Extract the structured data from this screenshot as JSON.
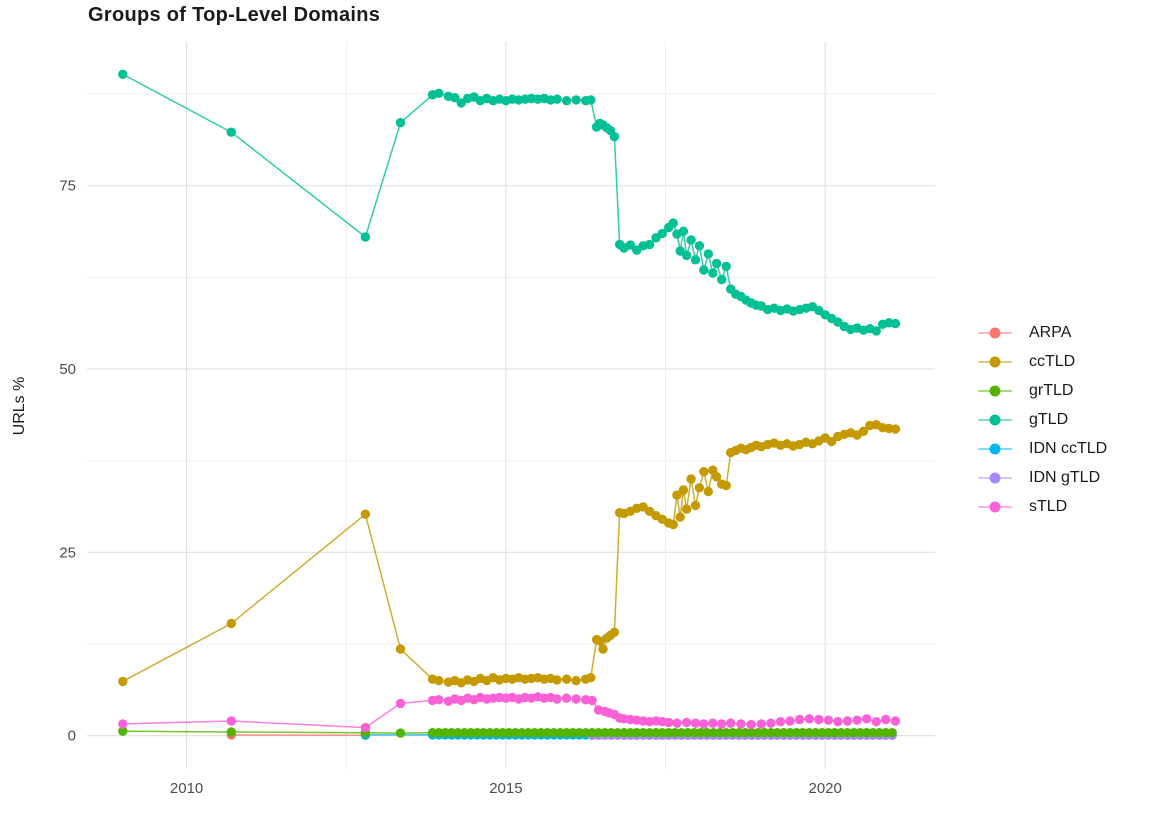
{
  "figure": {
    "background": "#ffffff"
  },
  "chart_data": {
    "type": "line",
    "title": "Groups of Top-Level Domains",
    "xlabel": "",
    "ylabel": "URLs %",
    "xlim": [
      2008.44,
      2021.72
    ],
    "ylim": [
      -4.55,
      94.6
    ],
    "x_ticks": [
      {
        "value": 2010,
        "label": "2010"
      },
      {
        "value": 2015,
        "label": "2015"
      },
      {
        "value": 2020,
        "label": "2020"
      }
    ],
    "y_ticks": [
      {
        "value": 0,
        "label": "0"
      },
      {
        "value": 25,
        "label": "25"
      },
      {
        "value": 50,
        "label": "50"
      },
      {
        "value": 75,
        "label": "75"
      }
    ],
    "x_minor": [
      2012.5,
      2017.5
    ],
    "y_minor": [
      12.5,
      37.5,
      62.5,
      87.5
    ],
    "grid": "major+minor",
    "legend_position": "right-middle",
    "colors": {
      "grid_major": "#e2e2e2",
      "grid_minor": "#efefef",
      "tick_label": "#4d4d4d",
      "title_text": "#1a1a1a"
    },
    "point_radius": 4.7,
    "line_width": 1.5,
    "draw_order": [
      "ARPA",
      "IDN ccTLD",
      "IDN gTLD",
      "grTLD",
      "ccTLD",
      "gTLD",
      "sTLD"
    ],
    "series": [
      {
        "id": "arpa",
        "name": "ARPA",
        "color": "#F8766D",
        "points": [
          [
            2010.7,
            0.1
          ],
          [
            2012.8,
            0.05
          ]
        ]
      },
      {
        "id": "cctld",
        "name": "ccTLD",
        "color": "#C49A00",
        "points": [
          [
            2009,
            7.4
          ],
          [
            2010.7,
            15.3
          ],
          [
            2012.8,
            30.2
          ],
          [
            2013.35,
            11.8
          ],
          [
            2013.85,
            7.7
          ],
          [
            2013.95,
            7.5
          ],
          [
            2014.1,
            7.3
          ],
          [
            2014.2,
            7.5
          ],
          [
            2014.3,
            7.2
          ],
          [
            2014.4,
            7.6
          ],
          [
            2014.5,
            7.4
          ],
          [
            2014.6,
            7.8
          ],
          [
            2014.7,
            7.5
          ],
          [
            2014.8,
            7.9
          ],
          [
            2014.9,
            7.6
          ],
          [
            2015,
            7.8
          ],
          [
            2015.1,
            7.7
          ],
          [
            2015.2,
            7.9
          ],
          [
            2015.3,
            7.7
          ],
          [
            2015.4,
            7.8
          ],
          [
            2015.5,
            7.9
          ],
          [
            2015.6,
            7.7
          ],
          [
            2015.7,
            7.8
          ],
          [
            2015.8,
            7.6
          ],
          [
            2015.95,
            7.7
          ],
          [
            2016.1,
            7.5
          ],
          [
            2016.25,
            7.7
          ],
          [
            2016.33,
            7.9
          ],
          [
            2016.42,
            13.1
          ],
          [
            2016.47,
            12.9
          ],
          [
            2016.52,
            11.8
          ],
          [
            2016.58,
            13.3
          ],
          [
            2016.64,
            13.7
          ],
          [
            2016.7,
            14.1
          ],
          [
            2016.78,
            30.4
          ],
          [
            2016.85,
            30.3
          ],
          [
            2016.95,
            30.6
          ],
          [
            2017.05,
            31
          ],
          [
            2017.15,
            31.2
          ],
          [
            2017.25,
            30.6
          ],
          [
            2017.35,
            30
          ],
          [
            2017.45,
            29.5
          ],
          [
            2017.55,
            29
          ],
          [
            2017.62,
            28.8
          ],
          [
            2017.68,
            32.8
          ],
          [
            2017.73,
            29.8
          ],
          [
            2017.78,
            33.5
          ],
          [
            2017.83,
            30.9
          ],
          [
            2017.9,
            35
          ],
          [
            2017.97,
            31.4
          ],
          [
            2018.03,
            33.8
          ],
          [
            2018.1,
            36
          ],
          [
            2018.17,
            33.3
          ],
          [
            2018.24,
            36.2
          ],
          [
            2018.3,
            35.3
          ],
          [
            2018.38,
            34.3
          ],
          [
            2018.45,
            34.1
          ],
          [
            2018.52,
            38.6
          ],
          [
            2018.6,
            38.9
          ],
          [
            2018.68,
            39.2
          ],
          [
            2018.76,
            39
          ],
          [
            2018.84,
            39.3
          ],
          [
            2018.92,
            39.6
          ],
          [
            2019,
            39.4
          ],
          [
            2019.1,
            39.7
          ],
          [
            2019.2,
            39.9
          ],
          [
            2019.3,
            39.6
          ],
          [
            2019.4,
            39.8
          ],
          [
            2019.5,
            39.5
          ],
          [
            2019.6,
            39.7
          ],
          [
            2019.7,
            40
          ],
          [
            2019.8,
            39.8
          ],
          [
            2019.9,
            40.2
          ],
          [
            2020,
            40.6
          ],
          [
            2020.1,
            40.1
          ],
          [
            2020.2,
            40.8
          ],
          [
            2020.3,
            41.1
          ],
          [
            2020.4,
            41.3
          ],
          [
            2020.5,
            41
          ],
          [
            2020.6,
            41.5
          ],
          [
            2020.7,
            42.3
          ],
          [
            2020.8,
            42.4
          ],
          [
            2020.9,
            42
          ],
          [
            2021,
            41.9
          ],
          [
            2021.1,
            41.8
          ]
        ]
      },
      {
        "id": "grtld",
        "name": "grTLD",
        "color": "#53B400",
        "points": [
          [
            2009,
            0.6
          ],
          [
            2010.7,
            0.5
          ],
          [
            2012.8,
            0.4
          ],
          [
            2013.35,
            0.35
          ]
        ],
        "span": {
          "start": 2013.85,
          "end": 2021.1,
          "step": 0.1,
          "value": 0.4
        }
      },
      {
        "id": "gtld",
        "name": "gTLD",
        "color": "#00C094",
        "points": [
          [
            2009,
            90.2
          ],
          [
            2010.7,
            82.3
          ],
          [
            2012.8,
            68
          ],
          [
            2013.35,
            83.6
          ],
          [
            2013.85,
            87.4
          ],
          [
            2013.95,
            87.6
          ],
          [
            2014.1,
            87.2
          ],
          [
            2014.2,
            87
          ],
          [
            2014.3,
            86.3
          ],
          [
            2014.4,
            86.9
          ],
          [
            2014.5,
            87.1
          ],
          [
            2014.6,
            86.6
          ],
          [
            2014.7,
            86.9
          ],
          [
            2014.8,
            86.6
          ],
          [
            2014.9,
            86.8
          ],
          [
            2015,
            86.6
          ],
          [
            2015.1,
            86.8
          ],
          [
            2015.2,
            86.7
          ],
          [
            2015.3,
            86.8
          ],
          [
            2015.4,
            86.9
          ],
          [
            2015.5,
            86.8
          ],
          [
            2015.6,
            86.9
          ],
          [
            2015.7,
            86.7
          ],
          [
            2015.8,
            86.8
          ],
          [
            2015.95,
            86.6
          ],
          [
            2016.1,
            86.7
          ],
          [
            2016.25,
            86.6
          ],
          [
            2016.33,
            86.7
          ],
          [
            2016.42,
            83
          ],
          [
            2016.47,
            83.5
          ],
          [
            2016.52,
            83.3
          ],
          [
            2016.58,
            82.9
          ],
          [
            2016.64,
            82.5
          ],
          [
            2016.7,
            81.7
          ],
          [
            2016.78,
            67
          ],
          [
            2016.85,
            66.5
          ],
          [
            2016.95,
            66.9
          ],
          [
            2017.05,
            66.2
          ],
          [
            2017.15,
            66.8
          ],
          [
            2017.25,
            67
          ],
          [
            2017.35,
            67.9
          ],
          [
            2017.45,
            68.5
          ],
          [
            2017.55,
            69.3
          ],
          [
            2017.62,
            69.9
          ],
          [
            2017.68,
            68.4
          ],
          [
            2017.73,
            66.1
          ],
          [
            2017.78,
            68.8
          ],
          [
            2017.83,
            65.5
          ],
          [
            2017.9,
            67.6
          ],
          [
            2017.97,
            64.9
          ],
          [
            2018.03,
            66.8
          ],
          [
            2018.1,
            63.5
          ],
          [
            2018.17,
            65.7
          ],
          [
            2018.24,
            63.1
          ],
          [
            2018.3,
            64.4
          ],
          [
            2018.38,
            62.2
          ],
          [
            2018.45,
            64
          ],
          [
            2018.52,
            60.9
          ],
          [
            2018.6,
            60.2
          ],
          [
            2018.68,
            59.9
          ],
          [
            2018.76,
            59.4
          ],
          [
            2018.84,
            59
          ],
          [
            2018.92,
            58.7
          ],
          [
            2019,
            58.6
          ],
          [
            2019.1,
            58.1
          ],
          [
            2019.2,
            58.3
          ],
          [
            2019.3,
            58
          ],
          [
            2019.4,
            58.2
          ],
          [
            2019.5,
            57.9
          ],
          [
            2019.6,
            58.1
          ],
          [
            2019.7,
            58.3
          ],
          [
            2019.8,
            58.5
          ],
          [
            2019.9,
            58
          ],
          [
            2020,
            57.4
          ],
          [
            2020.1,
            56.9
          ],
          [
            2020.2,
            56.4
          ],
          [
            2020.3,
            55.8
          ],
          [
            2020.4,
            55.4
          ],
          [
            2020.5,
            55.6
          ],
          [
            2020.6,
            55.3
          ],
          [
            2020.7,
            55.5
          ],
          [
            2020.8,
            55.2
          ],
          [
            2020.9,
            56.1
          ],
          [
            2021,
            56.3
          ],
          [
            2021.1,
            56.2
          ]
        ]
      },
      {
        "id": "idn-cctld",
        "name": "IDN ccTLD",
        "color": "#00B6EB",
        "points": [
          [
            2012.8,
            0.1
          ]
        ],
        "span": {
          "start": 2013.85,
          "end": 2021.1,
          "step": 0.1,
          "value": 0.1
        }
      },
      {
        "id": "idn-gtld",
        "name": "IDN gTLD",
        "color": "#A58AFF",
        "span": {
          "start": 2016.35,
          "end": 2021.1,
          "step": 0.1,
          "value": 0.05
        }
      },
      {
        "id": "stld",
        "name": "sTLD",
        "color": "#FB61D7",
        "points": [
          [
            2009,
            1.6
          ],
          [
            2010.7,
            2
          ],
          [
            2012.8,
            1.1
          ],
          [
            2013.35,
            4.4
          ],
          [
            2013.85,
            4.8
          ],
          [
            2013.95,
            4.9
          ],
          [
            2014.1,
            4.7
          ],
          [
            2014.2,
            5
          ],
          [
            2014.3,
            4.8
          ],
          [
            2014.4,
            5.1
          ],
          [
            2014.5,
            4.9
          ],
          [
            2014.6,
            5.2
          ],
          [
            2014.7,
            5
          ],
          [
            2014.8,
            5.1
          ],
          [
            2014.9,
            5.2
          ],
          [
            2015,
            5.1
          ],
          [
            2015.1,
            5.2
          ],
          [
            2015.2,
            5
          ],
          [
            2015.3,
            5.2
          ],
          [
            2015.4,
            5.1
          ],
          [
            2015.5,
            5.3
          ],
          [
            2015.6,
            5.1
          ],
          [
            2015.7,
            5.2
          ],
          [
            2015.8,
            5
          ],
          [
            2015.95,
            5.1
          ],
          [
            2016.1,
            5
          ],
          [
            2016.25,
            4.9
          ],
          [
            2016.35,
            4.8
          ],
          [
            2016.45,
            3.5
          ],
          [
            2016.55,
            3.3
          ],
          [
            2016.62,
            3.1
          ],
          [
            2016.7,
            2.9
          ],
          [
            2016.78,
            2.4
          ],
          [
            2016.85,
            2.3
          ],
          [
            2016.95,
            2.2
          ],
          [
            2017.05,
            2.1
          ],
          [
            2017.15,
            2
          ],
          [
            2017.25,
            1.9
          ],
          [
            2017.35,
            2
          ],
          [
            2017.45,
            1.9
          ],
          [
            2017.55,
            1.8
          ],
          [
            2017.68,
            1.7
          ],
          [
            2017.83,
            1.8
          ],
          [
            2017.97,
            1.7
          ],
          [
            2018.1,
            1.6
          ],
          [
            2018.24,
            1.7
          ],
          [
            2018.38,
            1.6
          ],
          [
            2018.52,
            1.7
          ],
          [
            2018.68,
            1.6
          ],
          [
            2018.84,
            1.5
          ],
          [
            2019,
            1.6
          ],
          [
            2019.15,
            1.7
          ],
          [
            2019.3,
            1.9
          ],
          [
            2019.45,
            2
          ],
          [
            2019.6,
            2.2
          ],
          [
            2019.75,
            2.3
          ],
          [
            2019.9,
            2.2
          ],
          [
            2020.05,
            2.1
          ],
          [
            2020.2,
            1.9
          ],
          [
            2020.35,
            2
          ],
          [
            2020.5,
            2.1
          ],
          [
            2020.65,
            2.3
          ],
          [
            2020.8,
            1.9
          ],
          [
            2020.95,
            2.2
          ],
          [
            2021.1,
            2
          ]
        ]
      }
    ]
  }
}
